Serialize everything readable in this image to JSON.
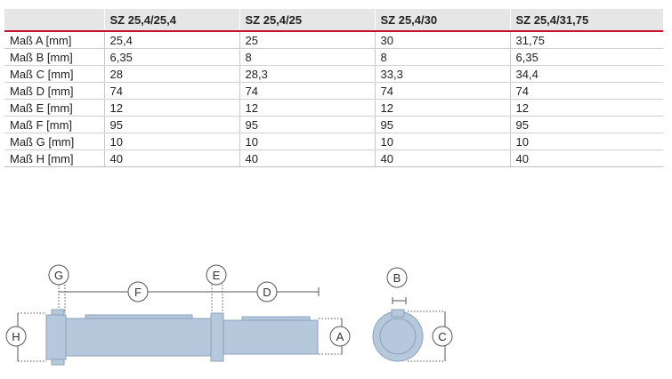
{
  "table": {
    "headers": [
      "",
      "SZ 25,4/25,4",
      "SZ 25,4/25",
      "SZ 25,4/30",
      "SZ 25,4/31,75"
    ],
    "rows": [
      [
        "Maß A [mm]",
        "25,4",
        "25",
        "30",
        "31,75"
      ],
      [
        "Maß B [mm]",
        "6,35",
        "8",
        "8",
        "6,35"
      ],
      [
        "Maß C [mm]",
        "28",
        "28,3",
        "33,3",
        "34,4"
      ],
      [
        "Maß D [mm]",
        "74",
        "74",
        "74",
        "74"
      ],
      [
        "Maß E [mm]",
        "12",
        "12",
        "12",
        "12"
      ],
      [
        "Maß F [mm]",
        "95",
        "95",
        "95",
        "95"
      ],
      [
        "Maß G [mm]",
        "10",
        "10",
        "10",
        "10"
      ],
      [
        "Maß H [mm]",
        "40",
        "40",
        "40",
        "40"
      ]
    ]
  },
  "drawing": {
    "labels": {
      "G": "G",
      "F": "F",
      "E": "E",
      "D": "D",
      "H": "H",
      "A": "A",
      "B": "B",
      "C": "C"
    },
    "colors": {
      "part_fill": "#b5c8dc",
      "part_stroke": "#8aa2bc",
      "dim_line": "#555555",
      "accent": "#c8102e",
      "header_bg": "#e6e6e6"
    }
  }
}
